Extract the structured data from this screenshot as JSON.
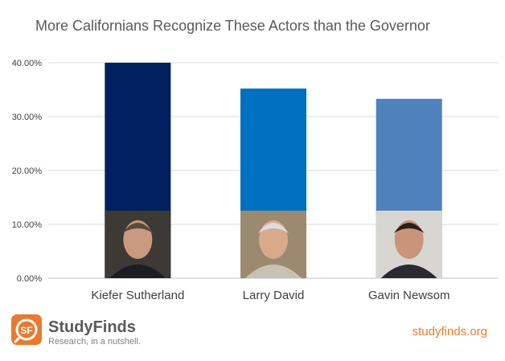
{
  "chart_data": {
    "type": "bar",
    "title": "More Californians Recognize These Actors than the Governor",
    "categories": [
      "Kiefer Sutherland",
      "Larry David",
      "Gavin Newsom"
    ],
    "values": [
      40.0,
      35.2,
      33.3
    ],
    "colors": [
      "#002060",
      "#0070c0",
      "#4f81bd"
    ],
    "ylim": [
      0,
      40
    ],
    "yticks": [
      0,
      10,
      20,
      30,
      40
    ],
    "ytick_labels": [
      "0.00%",
      "10.00%",
      "20.00%",
      "30.00%",
      "40.00%"
    ],
    "grid": true,
    "legend": "none",
    "xlabel": "",
    "ylabel": ""
  },
  "branding": {
    "logo_letters": "SF",
    "name": "StudyFinds",
    "tagline": "Research, in a nutshell.",
    "site": "studyfinds.org",
    "accent": "#e97a2e"
  },
  "photos": [
    {
      "subject": "Kiefer Sutherland",
      "icon": "portrait-photo"
    },
    {
      "subject": "Larry David",
      "icon": "portrait-photo"
    },
    {
      "subject": "Gavin Newsom",
      "icon": "portrait-photo"
    }
  ]
}
